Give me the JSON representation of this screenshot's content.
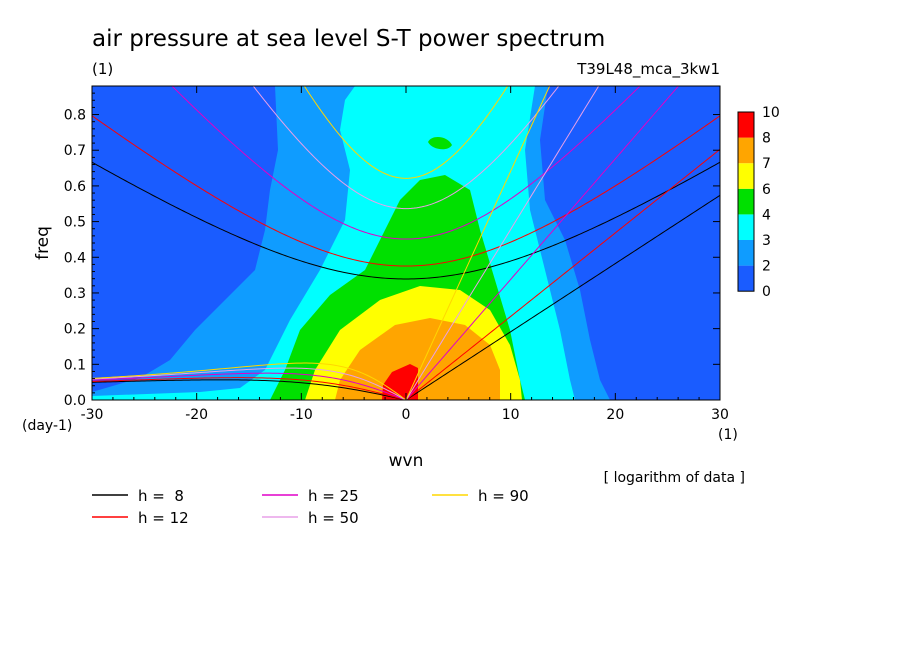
{
  "chart_data": {
    "type": "heatmap",
    "title": "air pressure at sea level S-T power spectrum",
    "title_unit": "(1)",
    "model_label": "T39L48_mca_3kw1",
    "xlabel": "wvn",
    "x_unit": "(1)",
    "ylabel": "freq",
    "y_unit": "(day-1)",
    "note": "[ logarithm of data ]",
    "xlim": [
      -30,
      30
    ],
    "ylim": [
      0,
      0.88
    ],
    "x_ticks": [
      "-30",
      "-20",
      "-10",
      "0",
      "10",
      "20",
      "30"
    ],
    "y_ticks": [
      "0.0",
      "0.1",
      "0.2",
      "0.3",
      "0.4",
      "0.5",
      "0.6",
      "0.7",
      "0.8"
    ],
    "colorbar": {
      "levels": [
        "0",
        "2",
        "3",
        "4",
        "6",
        "7",
        "8",
        "10"
      ],
      "colors": [
        "#1a5cff",
        "#0f9cff",
        "#00ffff",
        "#00e000",
        "#ffff00",
        "#ffa500",
        "#ff0000"
      ]
    },
    "contour_regions": [
      {
        "level": "2-3",
        "approx_extent_wvn": [
          -22,
          20
        ],
        "peak_freq": 0.88
      },
      {
        "level": "3-4",
        "approx_extent_wvn": [
          -16,
          14
        ],
        "peak_freq": 0.88
      },
      {
        "level": "4-6",
        "approx_extent_wvn": [
          -11,
          12
        ],
        "peak_freq": 0.63
      },
      {
        "level": "6-7",
        "approx_extent_wvn": [
          -8,
          9
        ],
        "peak_freq": 0.32
      },
      {
        "level": "7-8",
        "approx_extent_wvn": [
          -5,
          9
        ],
        "peak_freq": 0.23
      },
      {
        "level": "8-10",
        "approx_extent_wvn": [
          -2,
          3
        ],
        "peak_freq": 0.1
      }
    ],
    "dispersion_curves": [
      {
        "name": "h =  8",
        "color": "#000000"
      },
      {
        "name": "h = 12",
        "color": "#ff0000"
      },
      {
        "name": "h = 25",
        "color": "#e000c8"
      },
      {
        "name": "h = 50",
        "color": "#e8a0e8"
      },
      {
        "name": "h = 90",
        "color": "#ffd700"
      }
    ]
  }
}
